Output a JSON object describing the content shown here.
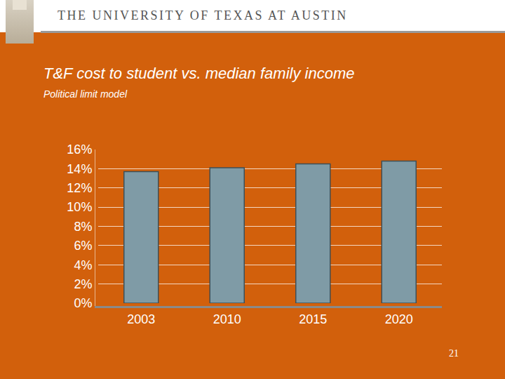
{
  "chart_data": {
    "type": "bar",
    "title": "T&F cost to student vs. median family income",
    "subtitle": "Political limit model",
    "annotations": [
      "THE UNIVERSITY OF TEXAS AT AUSTIN",
      "21"
    ],
    "categories": [
      "2003",
      "2010",
      "2015",
      "2020"
    ],
    "values": [
      13.7,
      14.1,
      14.5,
      14.8
    ],
    "color": "#7f9ba6",
    "ylim": [
      0,
      16
    ],
    "yticks": [
      {
        "value": 0,
        "label": "0%"
      },
      {
        "value": 2,
        "label": "2%"
      },
      {
        "value": 4,
        "label": "4%"
      },
      {
        "value": 6,
        "label": "6%"
      },
      {
        "value": 8,
        "label": "8%"
      },
      {
        "value": 10,
        "label": "10%"
      },
      {
        "value": 12,
        "label": "12%"
      },
      {
        "value": 14,
        "label": "14%"
      },
      {
        "value": 16,
        "label": "16%"
      }
    ],
    "grid": true
  }
}
